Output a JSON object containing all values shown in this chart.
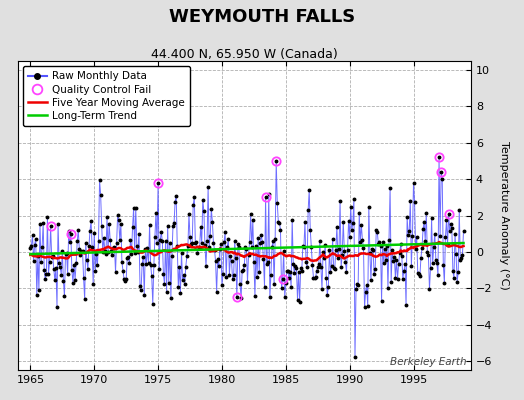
{
  "title": "WEYMOUTH FALLS",
  "subtitle": "44.400 N, 65.950 W (Canada)",
  "ylabel": "Temperature Anomaly (°C)",
  "watermark": "Berkeley Earth",
  "xlim": [
    1964.0,
    1999.5
  ],
  "ylim": [
    -6.5,
    10.5
  ],
  "yticks": [
    -6,
    -4,
    -2,
    0,
    2,
    4,
    6,
    8,
    10
  ],
  "xticks": [
    1965,
    1970,
    1975,
    1980,
    1985,
    1990,
    1995
  ],
  "bg_color": "#e0e0e0",
  "plot_bg_color": "#ffffff",
  "grid_color": "#b0b0b0",
  "raw_line_color": "#5555ff",
  "raw_dot_color": "#000000",
  "moving_avg_color": "#ee0000",
  "trend_color": "#00cc00",
  "qc_fail_color": "#ff44ff",
  "title_fontsize": 13,
  "subtitle_fontsize": 9,
  "tick_labelsize": 8,
  "ylabel_fontsize": 8,
  "seed": 77
}
